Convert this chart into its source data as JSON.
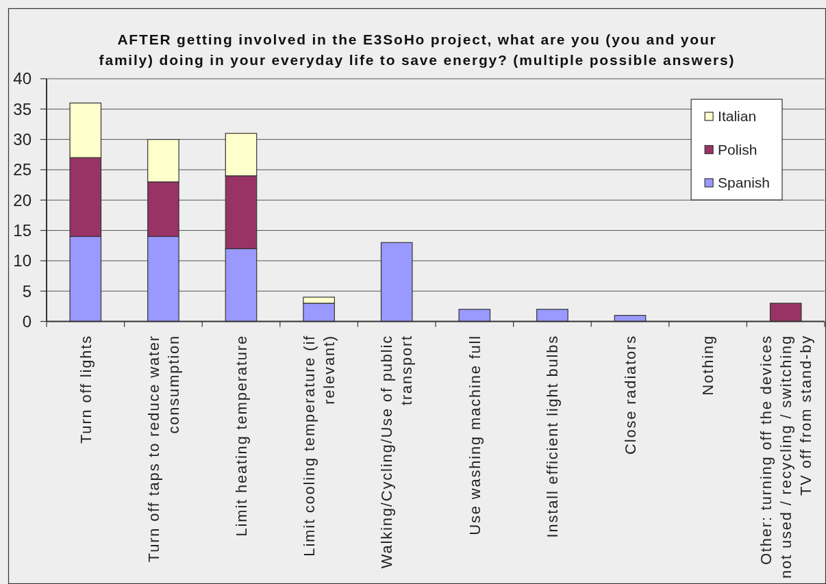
{
  "chart_data": {
    "type": "bar",
    "title": "AFTER getting involved in the E3SoHo project, what are you (you and your family) doing in your everyday life to save energy? (multiple possible answers)",
    "categories": [
      "Turn off lights",
      "Turn off taps to reduce water consumption",
      "Limit heating temperature",
      "Limit cooling temperature (if relevant)",
      "Walking/Cycling/Use of public transport",
      "Use washing machine full",
      "Install efficient light bulbs",
      "Close radiators",
      "Nothing",
      "Other: turning off the devices not used / recycling / switching TV off from stand-by"
    ],
    "series": [
      {
        "name": "Spanish",
        "color": "#9999ff",
        "values": [
          14,
          14,
          12,
          3,
          13,
          2,
          2,
          1,
          0,
          0
        ]
      },
      {
        "name": "Polish",
        "color": "#993366",
        "values": [
          13,
          9,
          12,
          0,
          0,
          0,
          0,
          0,
          0,
          3
        ]
      },
      {
        "name": "Italian",
        "color": "#ffffcc",
        "values": [
          9,
          7,
          7,
          1,
          0,
          0,
          0,
          0,
          0,
          0
        ]
      }
    ],
    "stacked": true,
    "ylim": [
      0,
      40
    ],
    "yticks": [
      0,
      5,
      10,
      15,
      20,
      25,
      30,
      35,
      40
    ],
    "grid": "y",
    "legend": "top right"
  }
}
